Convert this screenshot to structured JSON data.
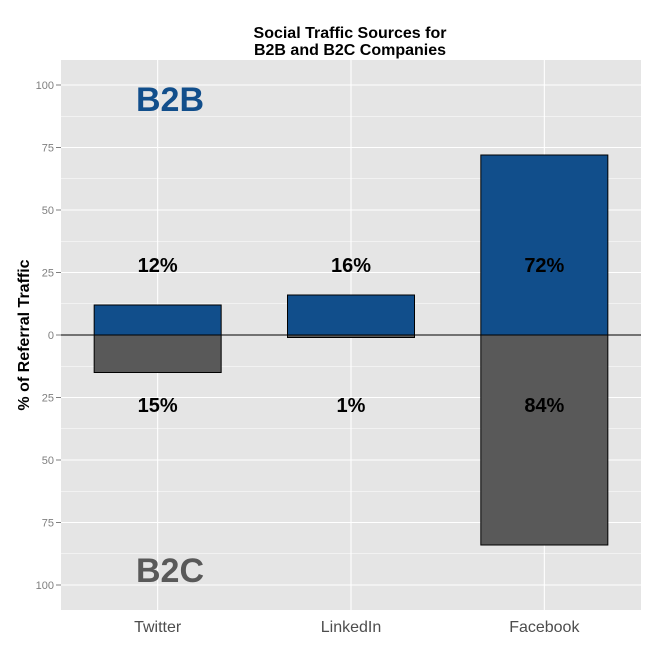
{
  "chart_data": {
    "type": "bar",
    "title": [
      "Social Traffic Sources for",
      "B2B and B2C Companies"
    ],
    "ylabel": "% of Referral Traffic",
    "xlabel": "",
    "categories": [
      "Twitter",
      "LinkedIn",
      "Facebook"
    ],
    "series": [
      {
        "name": "B2B",
        "direction": "up",
        "color": "#114E8B",
        "values": [
          12,
          16,
          72
        ],
        "labels": [
          "12%",
          "16%",
          "72%"
        ]
      },
      {
        "name": "B2C",
        "direction": "down",
        "color": "#595959",
        "values": [
          15,
          1,
          84
        ],
        "labels": [
          "15%",
          "1%",
          "84%"
        ]
      }
    ],
    "yticks": [
      100,
      75,
      50,
      25,
      0,
      25,
      50,
      75,
      100
    ],
    "ylim": [
      -100,
      100
    ],
    "grid": true,
    "panel_color": "#E5E5E5"
  }
}
